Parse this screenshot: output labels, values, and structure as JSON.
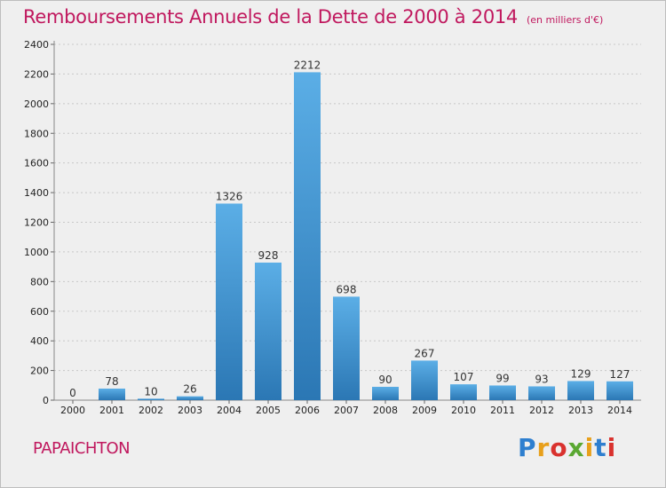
{
  "title": {
    "main": "Remboursements Annuels de la Dette de 2000 à 2014",
    "unit": "(en milliers d'€)"
  },
  "commune": "PAPAICHTON",
  "logo": {
    "letters": [
      "P",
      "r",
      "o",
      "x",
      "i",
      "t",
      "i"
    ],
    "colors": [
      "#2e7fcf",
      "#e8a01b",
      "#d9322e",
      "#5aa832",
      "#e8a01b",
      "#2e7fcf",
      "#d9322e"
    ]
  },
  "colors": {
    "bar_light": "#5baee6",
    "bar_dark": "#2b77b4",
    "title": "#c0185e",
    "background": "#efefef"
  },
  "chart_data": {
    "type": "bar",
    "categories": [
      "2000",
      "2001",
      "2002",
      "2003",
      "2004",
      "2005",
      "2006",
      "2007",
      "2008",
      "2009",
      "2010",
      "2011",
      "2012",
      "2013",
      "2014"
    ],
    "values": [
      0,
      78,
      10,
      26,
      1326,
      928,
      2212,
      698,
      90,
      267,
      107,
      99,
      93,
      129,
      127
    ],
    "ylim": [
      0,
      2400
    ],
    "yticks": [
      0,
      200,
      400,
      600,
      800,
      1000,
      1200,
      1400,
      1600,
      1800,
      2000,
      2200,
      2400
    ],
    "grid": true,
    "data_labels": true
  }
}
